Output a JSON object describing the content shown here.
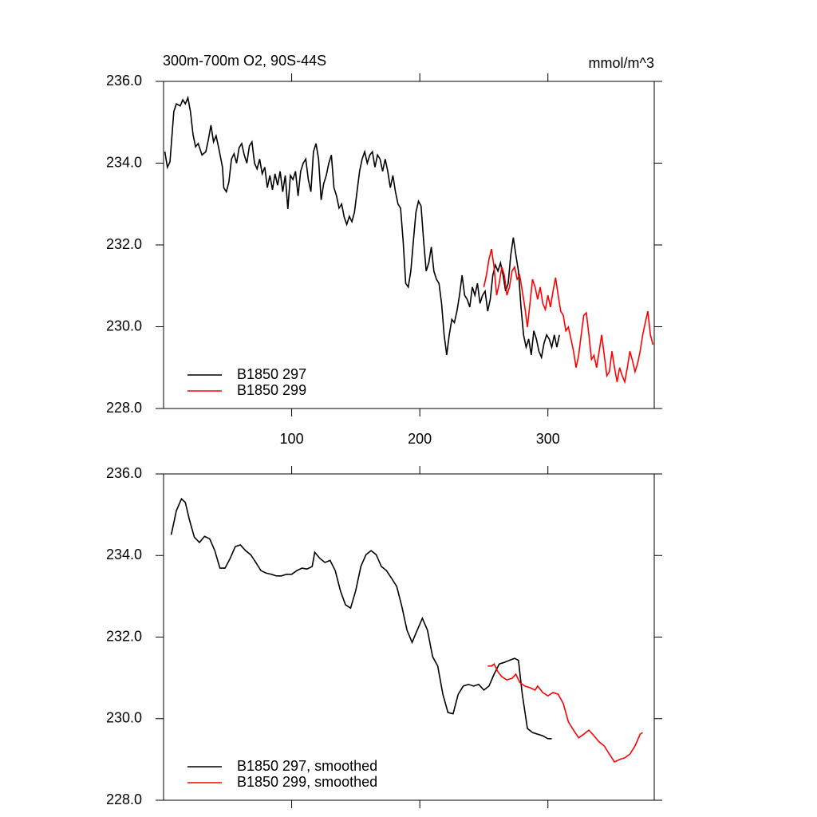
{
  "chart_data": [
    {
      "type": "line",
      "title": "300m-700m O2, 90S-44S",
      "units": "mmol/m^3",
      "xlim": [
        0,
        383
      ],
      "xticks": [
        100,
        200,
        300
      ],
      "ylim": [
        228,
        236
      ],
      "yticks": [
        {
          "value": 228,
          "label": "228.0"
        },
        {
          "value": 230,
          "label": "230.0"
        },
        {
          "value": 232,
          "label": "232.0"
        },
        {
          "value": 234,
          "label": "234.0"
        },
        {
          "value": 236,
          "label": "236.0"
        }
      ],
      "legend": "lower left",
      "series": [
        {
          "name": "B1850 297",
          "color": "#000000",
          "x": [
            1,
            3,
            5,
            8,
            10,
            13,
            15,
            17,
            19,
            21,
            23,
            25,
            27,
            30,
            33,
            35,
            37,
            39,
            41,
            43,
            46,
            47,
            49,
            51,
            53,
            55,
            57,
            59,
            61,
            63,
            65,
            67,
            69,
            71,
            73,
            75,
            77,
            79,
            81,
            83,
            85,
            87,
            89,
            91,
            93,
            95,
            97,
            99,
            101,
            103,
            105,
            107,
            109,
            111,
            113,
            115,
            117,
            119,
            121,
            123,
            125,
            127,
            129,
            131,
            133,
            135,
            137,
            139,
            141,
            143,
            145,
            147,
            149,
            151,
            153,
            155,
            157,
            159,
            161,
            163,
            165,
            167,
            169,
            171,
            173,
            175,
            177,
            179,
            181,
            183,
            185,
            187,
            189,
            191,
            193,
            195,
            197,
            199,
            201,
            203,
            205,
            207,
            209,
            211,
            213,
            215,
            217,
            219,
            221,
            223,
            225,
            227,
            229,
            231,
            233,
            235,
            237,
            239,
            241,
            243,
            245,
            247,
            249,
            251,
            253,
            255,
            257,
            259,
            261,
            263,
            265,
            267,
            269,
            271,
            273,
            275,
            277,
            279,
            281,
            283,
            285,
            287,
            289,
            291,
            293,
            295,
            297,
            299,
            301,
            303,
            305,
            307,
            309
          ],
          "values": [
            234.28,
            233.9,
            234.03,
            235.26,
            235.45,
            235.4,
            235.55,
            235.45,
            235.6,
            235.26,
            234.7,
            234.4,
            234.48,
            234.2,
            234.28,
            234.58,
            234.93,
            234.52,
            234.67,
            234.38,
            233.9,
            233.4,
            233.3,
            233.54,
            234.1,
            234.23,
            234.0,
            234.38,
            234.48,
            234.2,
            234.0,
            234.42,
            234.52,
            234.0,
            233.86,
            234.1,
            233.74,
            233.9,
            233.4,
            233.7,
            233.35,
            233.74,
            233.46,
            233.8,
            233.3,
            233.7,
            232.88,
            233.7,
            233.6,
            233.8,
            233.2,
            233.8,
            234.0,
            234.1,
            233.6,
            233.3,
            234.28,
            234.48,
            234.1,
            233.1,
            233.5,
            233.7,
            234.0,
            234.2,
            233.4,
            233.2,
            232.9,
            233.0,
            232.68,
            232.5,
            232.7,
            232.57,
            232.8,
            233.3,
            233.8,
            234.1,
            234.28,
            234.0,
            234.2,
            234.28,
            233.9,
            234.2,
            234.1,
            233.8,
            234.1,
            233.8,
            233.4,
            233.7,
            233.3,
            233.0,
            232.9,
            232.1,
            231.06,
            230.97,
            231.36,
            232.1,
            232.8,
            233.07,
            232.95,
            232.1,
            231.36,
            231.56,
            231.95,
            231.36,
            231.16,
            231.06,
            230.57,
            229.8,
            229.31,
            229.8,
            230.18,
            230.1,
            230.38,
            230.77,
            231.26,
            230.77,
            230.67,
            230.48,
            230.97,
            230.77,
            231.06,
            230.57,
            230.77,
            230.87,
            230.38,
            230.67,
            231.26,
            231.51,
            231.36,
            231.56,
            231.26,
            230.87,
            231.06,
            231.75,
            232.18,
            231.75,
            231.36,
            230.48,
            229.8,
            229.5,
            229.7,
            229.31,
            229.9,
            229.7,
            229.4,
            229.25,
            229.6,
            229.8,
            229.7,
            229.5,
            229.8,
            229.5,
            229.8
          ]
        },
        {
          "name": "B1850 299",
          "color": "#ff0000",
          "x": [
            250,
            252,
            254,
            256,
            258,
            260,
            262,
            264,
            266,
            268,
            270,
            272,
            274,
            276,
            278,
            280,
            282,
            284,
            286,
            288,
            290,
            292,
            294,
            296,
            298,
            300,
            302,
            304,
            306,
            308,
            310,
            312,
            314,
            316,
            318,
            320,
            322,
            324,
            326,
            328,
            330,
            332,
            334,
            336,
            338,
            340,
            342,
            344,
            346,
            348,
            350,
            352,
            354,
            356,
            358,
            360,
            362,
            364,
            366,
            368,
            370,
            372,
            374,
            376,
            378,
            380,
            382
          ],
          "values": [
            230.97,
            231.26,
            231.65,
            231.9,
            231.45,
            230.77,
            231.06,
            231.46,
            231.26,
            230.77,
            230.97,
            231.36,
            231.46,
            231.16,
            231.26,
            230.87,
            230.48,
            229.99,
            230.57,
            231.16,
            230.97,
            230.67,
            230.97,
            230.57,
            230.42,
            230.77,
            230.48,
            230.87,
            231.2,
            230.77,
            230.38,
            230.28,
            229.9,
            229.99,
            229.7,
            229.4,
            229.0,
            229.3,
            229.8,
            230.28,
            230.34,
            229.8,
            229.2,
            229.3,
            229.0,
            229.4,
            229.8,
            229.3,
            228.8,
            228.9,
            229.4,
            229.0,
            228.65,
            229.0,
            228.8,
            228.65,
            229.0,
            229.4,
            229.17,
            228.9,
            229.1,
            229.4,
            229.8,
            230.1,
            230.38,
            229.8,
            229.56
          ]
        }
      ]
    },
    {
      "type": "line",
      "xlim": [
        0,
        383
      ],
      "xticks": [
        100,
        200,
        300
      ],
      "xticklabels": false,
      "ylim": [
        228,
        236
      ],
      "yticks": [
        {
          "value": 228,
          "label": "228.0"
        },
        {
          "value": 230,
          "label": "230.0"
        },
        {
          "value": 232,
          "label": "232.0"
        },
        {
          "value": 234,
          "label": "234.0"
        },
        {
          "value": 236,
          "label": "236.0"
        }
      ],
      "legend": "lower left",
      "series": [
        {
          "name": "B1850 297, smoothed",
          "color": "#000000",
          "x": [
            6,
            10,
            14,
            17,
            20,
            24,
            28,
            32,
            36,
            40,
            44,
            48,
            52,
            56,
            60,
            64,
            68,
            72,
            76,
            80,
            84,
            88,
            92,
            96,
            100,
            104,
            108,
            112,
            116,
            118,
            122,
            126,
            130,
            134,
            138,
            142,
            146,
            150,
            154,
            158,
            162,
            166,
            170,
            174,
            178,
            182,
            186,
            190,
            194,
            198,
            202,
            206,
            210,
            214,
            218,
            222,
            226,
            230,
            234,
            238,
            242,
            246,
            250,
            254,
            258,
            262,
            266,
            270,
            274,
            277,
            280,
            284,
            288,
            292,
            296,
            300,
            303
          ],
          "values": [
            234.51,
            235.1,
            235.39,
            235.3,
            234.9,
            234.45,
            234.32,
            234.47,
            234.41,
            234.12,
            233.69,
            233.69,
            233.93,
            234.22,
            234.26,
            234.12,
            234.02,
            233.83,
            233.63,
            233.57,
            233.54,
            233.5,
            233.5,
            233.54,
            233.54,
            233.63,
            233.69,
            233.67,
            233.73,
            234.08,
            233.93,
            233.83,
            233.88,
            233.63,
            233.14,
            232.79,
            232.71,
            233.14,
            233.73,
            234.02,
            234.12,
            234.02,
            233.73,
            233.63,
            233.44,
            233.24,
            232.75,
            232.17,
            231.87,
            232.17,
            232.46,
            232.17,
            231.52,
            231.29,
            230.6,
            230.15,
            230.12,
            230.6,
            230.8,
            230.84,
            230.8,
            230.84,
            230.7,
            230.8,
            231.09,
            231.34,
            231.38,
            231.43,
            231.48,
            231.43,
            230.6,
            229.76,
            229.66,
            229.62,
            229.58,
            229.51,
            229.51
          ]
        },
        {
          "name": "B1850 299, smoothed",
          "color": "#ff0000",
          "x": [
            253,
            256,
            258,
            261,
            264,
            268,
            272,
            275,
            278,
            282,
            286,
            290,
            292,
            296,
            300,
            304,
            308,
            312,
            316,
            320,
            324,
            328,
            332,
            336,
            340,
            344,
            348,
            352,
            356,
            360,
            364,
            368,
            372,
            374
          ],
          "values": [
            231.29,
            231.29,
            231.34,
            231.15,
            231.03,
            230.95,
            230.99,
            231.09,
            230.89,
            230.8,
            230.76,
            230.7,
            230.8,
            230.64,
            230.56,
            230.64,
            230.6,
            230.37,
            229.92,
            229.72,
            229.53,
            229.62,
            229.72,
            229.58,
            229.43,
            229.33,
            229.13,
            228.94,
            229.0,
            229.04,
            229.13,
            229.33,
            229.62,
            229.66
          ]
        }
      ]
    }
  ]
}
